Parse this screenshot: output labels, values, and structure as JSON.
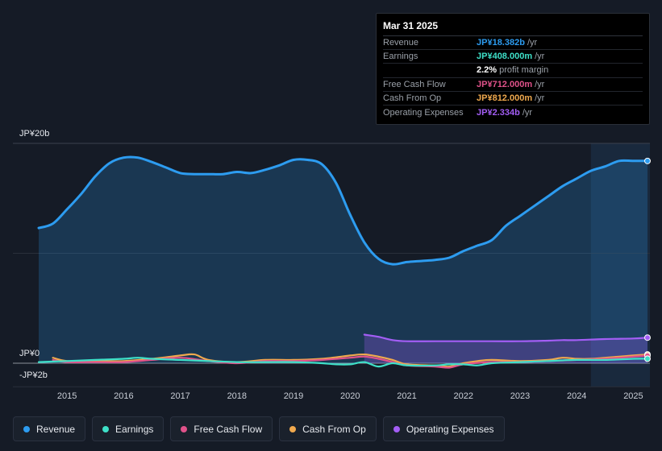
{
  "tooltip": {
    "date": "Mar 31 2025",
    "rows": [
      {
        "label": "Revenue",
        "value": "JP¥18.382b",
        "unit": "/yr",
        "color": "#2d9cf0"
      },
      {
        "label": "Earnings",
        "value": "JP¥408.000m",
        "unit": "/yr",
        "color": "#3ee0c8"
      },
      {
        "label": "",
        "value": "2.2%",
        "unit": "profit margin",
        "color": "#ffffff"
      },
      {
        "label": "Free Cash Flow",
        "value": "JP¥712.000m",
        "unit": "/yr",
        "color": "#e0528a"
      },
      {
        "label": "Cash From Op",
        "value": "JP¥812.000m",
        "unit": "/yr",
        "color": "#f0a94e"
      },
      {
        "label": "Operating Expenses",
        "value": "JP¥2.334b",
        "unit": "/yr",
        "color": "#a35ef5"
      }
    ]
  },
  "chart_data": {
    "type": "line",
    "ylim": [
      -2,
      20
    ],
    "y_tick_labels": [
      "JP¥20b",
      "JP¥0",
      "-JP¥2b"
    ],
    "x_tick_labels": [
      "2015",
      "2016",
      "2017",
      "2018",
      "2019",
      "2020",
      "2021",
      "2022",
      "2023",
      "2024",
      "2025"
    ],
    "x_ticks": [
      2015,
      2016,
      2017,
      2018,
      2019,
      2020,
      2021,
      2022,
      2023,
      2024,
      2025
    ],
    "xlim": [
      2014.5,
      2025.25
    ],
    "highlight_start": 2024.25,
    "series": [
      {
        "name": "Revenue",
        "color": "#2d9cf0",
        "area": true,
        "x": [
          2014.5,
          2014.75,
          2015.0,
          2015.25,
          2015.5,
          2015.75,
          2016.0,
          2016.25,
          2016.5,
          2016.75,
          2017.0,
          2017.25,
          2017.5,
          2017.75,
          2018.0,
          2018.25,
          2018.5,
          2018.75,
          2019.0,
          2019.25,
          2019.5,
          2019.75,
          2020.0,
          2020.25,
          2020.5,
          2020.75,
          2021.0,
          2021.25,
          2021.5,
          2021.75,
          2022.0,
          2022.25,
          2022.5,
          2022.75,
          2023.0,
          2023.25,
          2023.5,
          2023.75,
          2024.0,
          2024.25,
          2024.5,
          2024.75,
          2025.0,
          2025.25
        ],
        "values": [
          12.3,
          12.7,
          14.0,
          15.4,
          17.0,
          18.2,
          18.7,
          18.7,
          18.3,
          17.8,
          17.3,
          17.2,
          17.2,
          17.2,
          17.4,
          17.3,
          17.6,
          18.0,
          18.5,
          18.5,
          18.1,
          16.4,
          13.5,
          11.0,
          9.5,
          9.0,
          9.2,
          9.3,
          9.4,
          9.6,
          10.2,
          10.7,
          11.2,
          12.5,
          13.4,
          14.3,
          15.2,
          16.1,
          16.8,
          17.5,
          17.9,
          18.4,
          18.4,
          18.4
        ]
      },
      {
        "name": "Operating Expenses",
        "color": "#a35ef5",
        "area": true,
        "x": [
          2020.25,
          2020.5,
          2020.75,
          2021.0,
          2021.5,
          2022.0,
          2022.5,
          2023.0,
          2023.5,
          2023.75,
          2024.0,
          2024.5,
          2025.0,
          2025.25
        ],
        "values": [
          2.6,
          2.4,
          2.1,
          2.0,
          2.0,
          2.0,
          2.0,
          2.0,
          2.05,
          2.1,
          2.1,
          2.2,
          2.25,
          2.33
        ]
      },
      {
        "name": "Cash From Op",
        "color": "#f0a94e",
        "area": false,
        "x": [
          2014.75,
          2015.0,
          2015.5,
          2016.0,
          2016.5,
          2017.0,
          2017.25,
          2017.5,
          2018.0,
          2018.5,
          2019.0,
          2019.5,
          2020.0,
          2020.25,
          2020.5,
          2020.75,
          2021.0,
          2021.5,
          2021.75,
          2022.0,
          2022.25,
          2022.5,
          2023.0,
          2023.5,
          2023.75,
          2024.0,
          2024.25,
          2024.5,
          2025.0,
          2025.25
        ],
        "values": [
          0.5,
          0.2,
          0.2,
          0.2,
          0.4,
          0.7,
          0.8,
          0.3,
          0.1,
          0.3,
          0.3,
          0.4,
          0.7,
          0.8,
          0.6,
          0.3,
          -0.1,
          -0.2,
          -0.3,
          0.0,
          0.2,
          0.3,
          0.2,
          0.3,
          0.5,
          0.4,
          0.4,
          0.5,
          0.7,
          0.8
        ]
      },
      {
        "name": "Free Cash Flow",
        "color": "#e0528a",
        "area": false,
        "x": [
          2014.75,
          2015.0,
          2015.5,
          2016.0,
          2016.5,
          2017.0,
          2017.5,
          2018.0,
          2018.5,
          2019.0,
          2019.5,
          2020.0,
          2020.25,
          2020.5,
          2020.75,
          2021.0,
          2021.5,
          2021.75,
          2022.0,
          2022.5,
          2023.0,
          2023.5,
          2024.0,
          2024.5,
          2025.0,
          2025.25
        ],
        "values": [
          0.3,
          0.1,
          0.1,
          0.1,
          0.3,
          0.5,
          0.2,
          0.0,
          0.2,
          0.2,
          0.3,
          0.5,
          0.6,
          0.4,
          0.1,
          -0.2,
          -0.3,
          -0.4,
          -0.1,
          0.1,
          0.1,
          0.2,
          0.3,
          0.4,
          0.6,
          0.7
        ]
      },
      {
        "name": "Earnings",
        "color": "#3ee0c8",
        "area": false,
        "x": [
          2014.5,
          2015.0,
          2015.5,
          2016.0,
          2016.25,
          2016.5,
          2017.0,
          2017.5,
          2018.0,
          2018.5,
          2019.0,
          2019.5,
          2019.75,
          2020.0,
          2020.25,
          2020.5,
          2020.75,
          2021.0,
          2021.5,
          2021.75,
          2022.0,
          2022.25,
          2022.5,
          2023.0,
          2023.5,
          2024.0,
          2024.5,
          2025.0,
          2025.25
        ],
        "values": [
          0.1,
          0.2,
          0.3,
          0.4,
          0.5,
          0.4,
          0.3,
          0.2,
          0.1,
          0.1,
          0.1,
          0.0,
          -0.1,
          -0.1,
          0.1,
          -0.3,
          0.0,
          -0.2,
          -0.2,
          -0.1,
          -0.1,
          -0.2,
          0.0,
          0.1,
          0.2,
          0.3,
          0.3,
          0.4,
          0.41
        ]
      }
    ]
  },
  "legend": [
    {
      "label": "Revenue",
      "color": "#2d9cf0"
    },
    {
      "label": "Earnings",
      "color": "#3ee0c8"
    },
    {
      "label": "Free Cash Flow",
      "color": "#e0528a"
    },
    {
      "label": "Cash From Op",
      "color": "#f0a94e"
    },
    {
      "label": "Operating Expenses",
      "color": "#a35ef5"
    }
  ]
}
